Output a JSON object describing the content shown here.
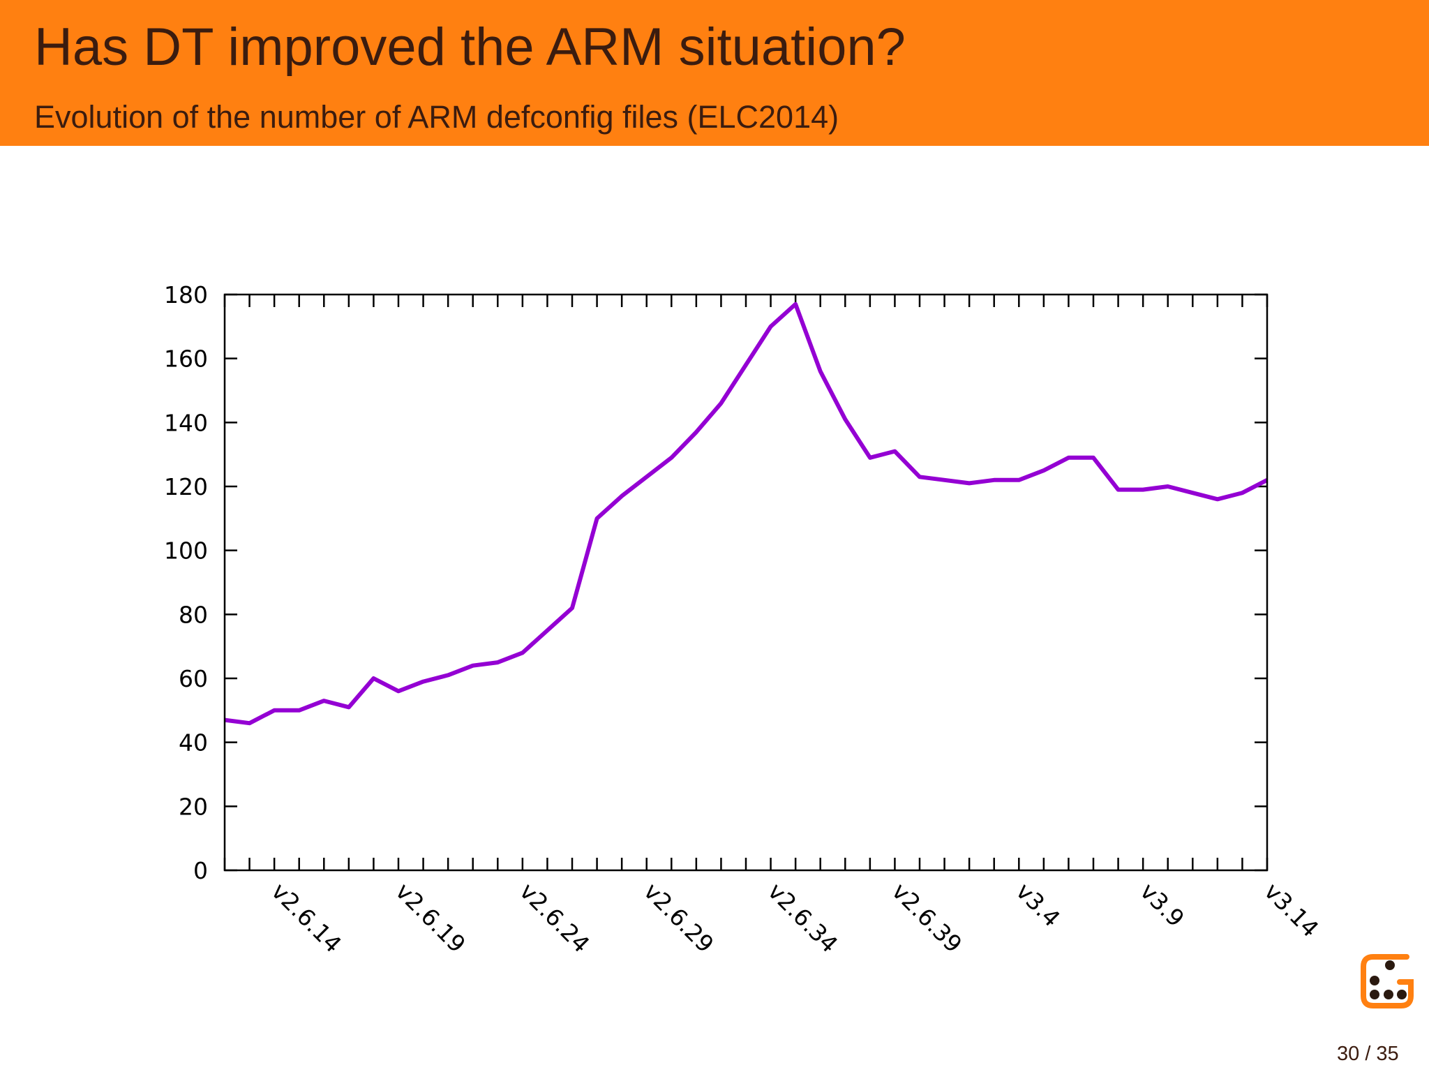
{
  "slide": {
    "title": "Has DT improved the ARM situation?",
    "subtitle": "Evolution of the number of ARM defconfig files (ELC2014)",
    "page_number": "30 / 35",
    "header_color": "#ff8011",
    "text_color": "#3b1c0f"
  },
  "chart_data": {
    "type": "line",
    "title": "",
    "xlabel": "",
    "ylabel": "",
    "ylim": [
      0,
      180
    ],
    "yticks": [
      0,
      20,
      40,
      60,
      80,
      100,
      120,
      140,
      160,
      180
    ],
    "grid": false,
    "legend": "none",
    "x_tick_labels": [
      "v2.6.14",
      "v2.6.19",
      "v2.6.24",
      "v2.6.29",
      "v2.6.34",
      "v2.6.39",
      "v3.4",
      "v3.9",
      "v3.14"
    ],
    "line_color": "#9400d3",
    "series": [
      {
        "values": [
          47,
          46,
          50,
          50,
          53,
          51,
          60,
          56,
          59,
          61,
          64,
          65,
          68,
          75,
          82,
          110,
          117,
          123,
          129,
          137,
          146,
          158,
          170,
          177,
          156,
          141,
          129,
          131,
          123,
          122,
          121,
          122,
          122,
          125,
          129,
          129,
          119,
          119,
          120,
          118,
          116,
          118,
          122
        ]
      }
    ]
  }
}
